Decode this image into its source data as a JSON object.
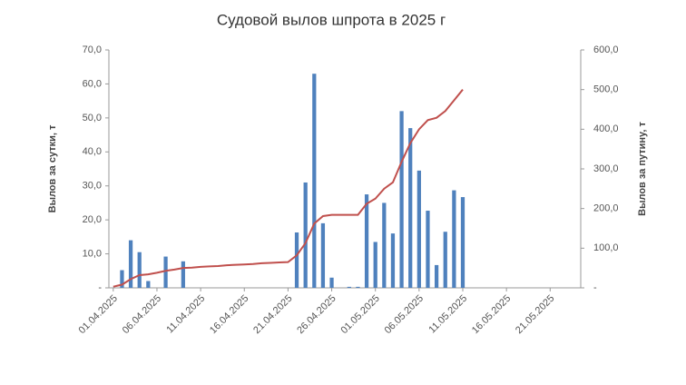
{
  "chart_data": {
    "type": "bar_line",
    "title": "Судовой вылов шпрота в 2025 г",
    "y_label": "Вылов за сутки,  т",
    "y2_label": "Вылов за путину, т",
    "categories": [
      "01.04.2025",
      null,
      null,
      null,
      null,
      "06.04.2025",
      null,
      null,
      null,
      null,
      "11.04.2025",
      null,
      null,
      null,
      null,
      "16.04.2025",
      null,
      null,
      null,
      null,
      "21.04.2025",
      null,
      null,
      null,
      null,
      "26.04.2025",
      null,
      null,
      null,
      null,
      "01.05.2025",
      null,
      null,
      null,
      null,
      "06.05.2025",
      null,
      null,
      null,
      null,
      "11.05.2025",
      null,
      null,
      null,
      null,
      "16.05.2025",
      null,
      null,
      null,
      null,
      "21.05.2025",
      null,
      null,
      null
    ],
    "series": [
      {
        "type": "bar",
        "color": "#4f81bd",
        "values": [
          null,
          5.2,
          14,
          10.5,
          2,
          null,
          9.2,
          null,
          7.8,
          null,
          null,
          null,
          null,
          null,
          null,
          null,
          null,
          null,
          null,
          null,
          null,
          16.3,
          31,
          63,
          19,
          3,
          null,
          0.3,
          0.3,
          27.5,
          13.5,
          25,
          16,
          52,
          47,
          34.5,
          22.7,
          6.7,
          16.5,
          28.7,
          26.7,
          null,
          null,
          null,
          null,
          null,
          null,
          null,
          null,
          null,
          null,
          null,
          null,
          null
        ]
      },
      {
        "type": "line",
        "axis": "y2",
        "color": "#c0504d",
        "values": [
          3,
          8,
          22,
          32,
          34,
          38,
          43,
          46,
          50,
          51,
          53,
          54,
          55,
          57,
          58,
          59,
          60,
          62,
          63,
          64,
          65,
          82,
          113,
          162,
          181,
          184,
          184,
          184,
          184,
          212,
          225,
          250,
          266,
          318,
          365,
          400,
          423,
          429,
          446,
          473,
          500,
          null,
          null,
          null,
          null,
          null,
          null,
          null,
          null,
          null,
          null,
          null,
          null,
          null
        ]
      }
    ],
    "ylim": [
      0,
      70
    ],
    "yticks": [
      {
        "value": 0,
        "label": "-"
      },
      {
        "value": 10,
        "label": "10,0"
      },
      {
        "value": 20,
        "label": "20,0"
      },
      {
        "value": 30,
        "label": "30,0"
      },
      {
        "value": 40,
        "label": "40,0"
      },
      {
        "value": 50,
        "label": "50,0"
      },
      {
        "value": 60,
        "label": "60,0"
      },
      {
        "value": 70,
        "label": "70,0"
      }
    ],
    "y2lim": [
      0,
      600
    ],
    "y2ticks": [
      {
        "value": 0,
        "label": "-"
      },
      {
        "value": 100,
        "label": "100,0"
      },
      {
        "value": 200,
        "label": "200,0"
      },
      {
        "value": 300,
        "label": "300,0"
      },
      {
        "value": 400,
        "label": "400,0"
      },
      {
        "value": 500,
        "label": "500,0"
      },
      {
        "value": 600,
        "label": "600,0"
      }
    ],
    "grid": false
  }
}
